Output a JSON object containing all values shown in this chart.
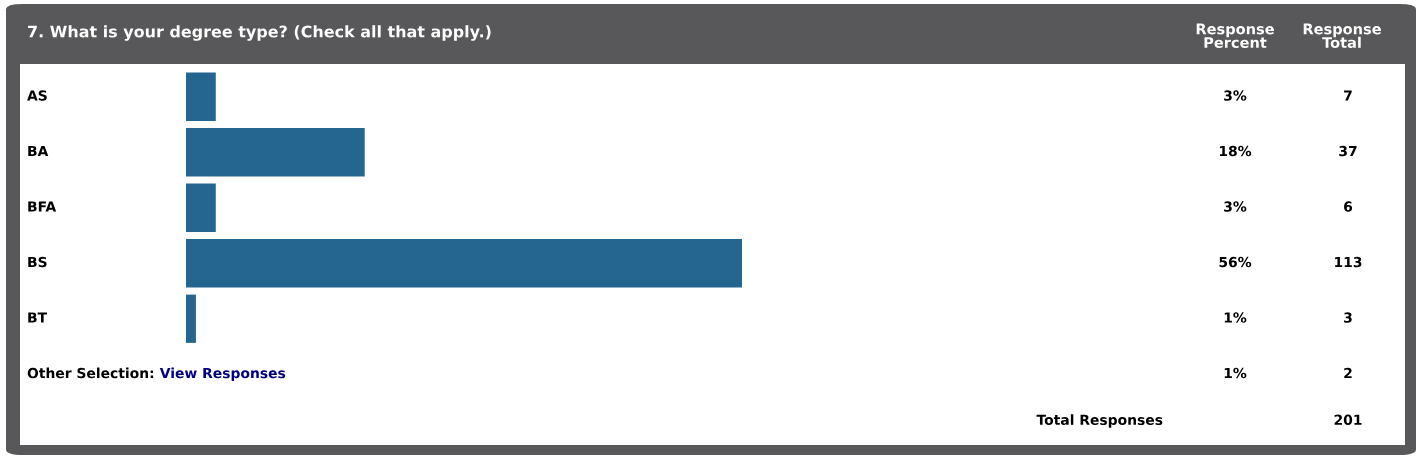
{
  "chart_data": {
    "type": "bar",
    "orientation": "horizontal",
    "title": "7. What is your degree type? (Check all that apply.)",
    "categories": [
      "AS",
      "BA",
      "BFA",
      "BS",
      "BT",
      "Other Selection: View Responses"
    ],
    "values": [
      3,
      18,
      3,
      56,
      1,
      null
    ],
    "value_labels": [
      "3%",
      "18%",
      "3%",
      "56%",
      "1%",
      "1%"
    ],
    "color": "#256690",
    "annotations": [
      "Response\nPercent",
      "Response\nTotal",
      "7",
      "37",
      "6",
      "113",
      "3",
      "2",
      "Total Responses",
      "201"
    ]
  }
}
